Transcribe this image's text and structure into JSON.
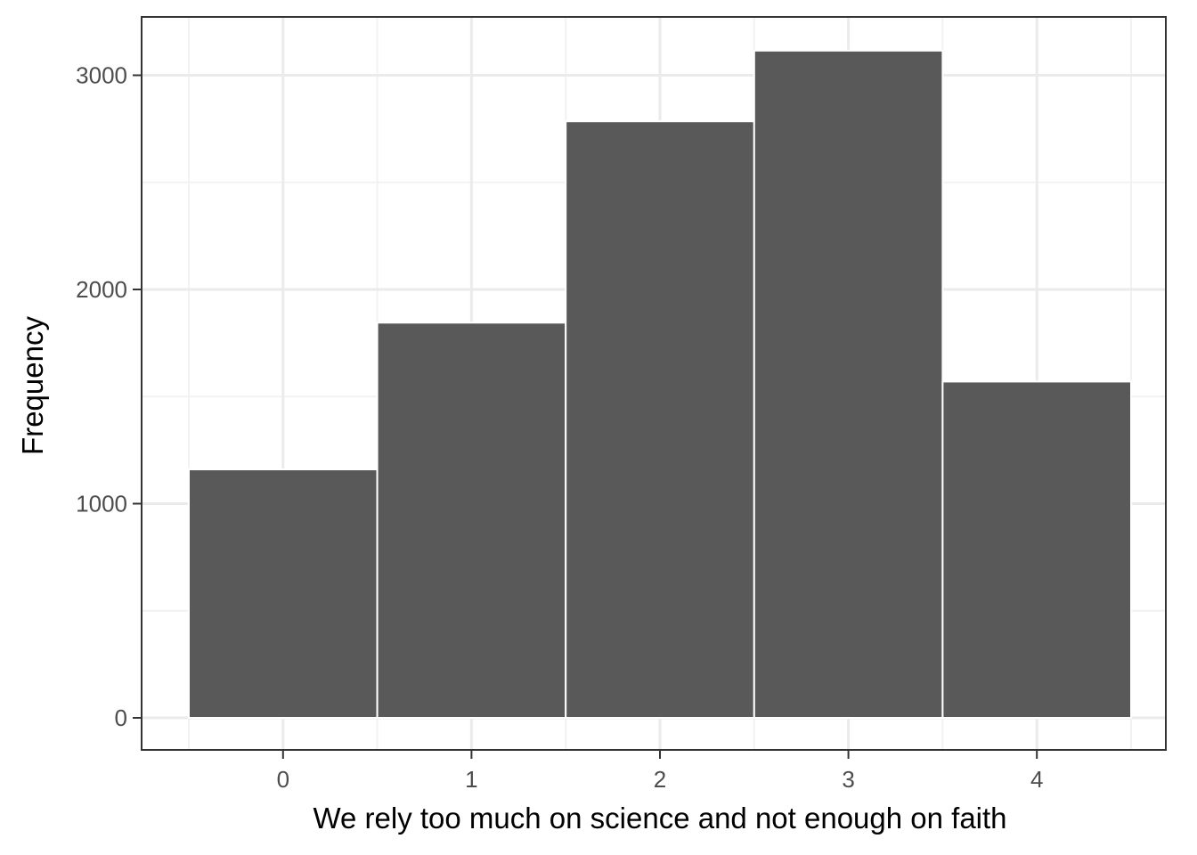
{
  "chart_data": {
    "type": "bar",
    "title": "",
    "xlabel": "We rely too much on science and not enough on faith",
    "ylabel": "Frequency",
    "categories": [
      0,
      1,
      2,
      3,
      4
    ],
    "values": [
      1160,
      1845,
      2785,
      3115,
      1570
    ],
    "xlim": [
      -0.5,
      4.5
    ],
    "ylim": [
      0,
      3250
    ],
    "y_ticks": [
      0,
      1000,
      2000,
      3000
    ],
    "x_ticks": [
      0,
      1,
      2,
      3,
      4
    ],
    "grid": true,
    "legend": "none",
    "colors": {
      "bar_fill": "#595959",
      "bar_edge": "#ffffff",
      "grid_major": "#ebebeb",
      "grid_minor": "#f2f2f2",
      "panel_border": "#333333",
      "tick_text": "#4d4d4d"
    }
  }
}
